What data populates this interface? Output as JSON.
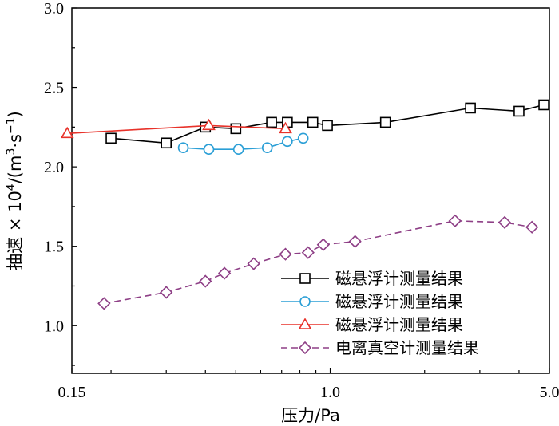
{
  "chart_data": {
    "type": "line",
    "xlabel": "压力/Pa",
    "ylabel_main": "抽速 × 10",
    "ylabel_exp": "4",
    "ylabel_unit_open": "/(m",
    "ylabel_unit_exp1": "3",
    "ylabel_unit_mid": "·s",
    "ylabel_unit_exp2": "−1",
    "ylabel_unit_close": ")",
    "xscale": "log",
    "xlim": [
      0.15,
      5.0
    ],
    "ylim": [
      0.7,
      3.0
    ],
    "xticks": [
      0.15,
      1.0,
      5.0
    ],
    "xtick_labels": [
      "0.15",
      "1.0",
      "5.0"
    ],
    "yticks": [
      1.0,
      1.5,
      2.0,
      2.5,
      3.0
    ],
    "ytick_labels": [
      "1.0",
      "1.5",
      "2.0",
      "2.5",
      "3.0"
    ],
    "legend_position": "bottom-right",
    "series": [
      {
        "name": "磁悬浮计测量结果",
        "color": "#000000",
        "marker": "square",
        "dash": "solid",
        "x": [
          0.2,
          0.3,
          0.4,
          0.5,
          0.65,
          0.73,
          0.88,
          0.98,
          1.5,
          2.8,
          4.0,
          4.8
        ],
        "y": [
          2.18,
          2.15,
          2.25,
          2.24,
          2.28,
          2.28,
          2.28,
          2.26,
          2.28,
          2.37,
          2.35,
          2.39
        ]
      },
      {
        "name": "磁悬浮计测量结果",
        "color": "#2b9fd6",
        "marker": "circle",
        "dash": "solid",
        "x": [
          0.34,
          0.41,
          0.51,
          0.63,
          0.73,
          0.82
        ],
        "y": [
          2.12,
          2.11,
          2.11,
          2.12,
          2.16,
          2.18
        ]
      },
      {
        "name": "磁悬浮计测量结果",
        "color": "#e8322a",
        "marker": "triangle",
        "dash": "solid",
        "x": [
          0.145,
          0.41,
          0.72
        ],
        "y": [
          2.21,
          2.26,
          2.24
        ]
      },
      {
        "name": "电离真空计测量结果",
        "color": "#8e3f86",
        "marker": "diamond",
        "dash": "dashed",
        "x": [
          0.19,
          0.3,
          0.4,
          0.46,
          0.57,
          0.72,
          0.85,
          0.95,
          1.2,
          2.5,
          3.6,
          4.4
        ],
        "y": [
          1.14,
          1.21,
          1.28,
          1.33,
          1.39,
          1.45,
          1.46,
          1.51,
          1.53,
          1.66,
          1.65,
          1.62
        ]
      }
    ]
  }
}
